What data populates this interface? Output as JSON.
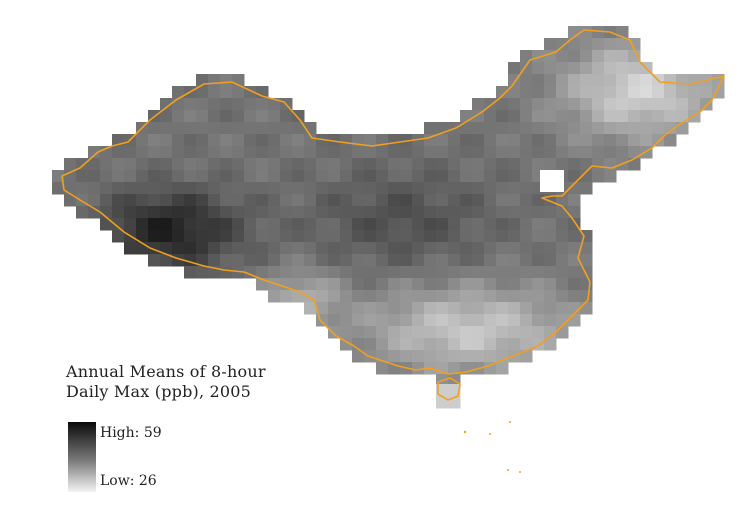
{
  "legend": {
    "title_line1": "Annual Means of 8-hour",
    "title_line2": "Daily Max (ppb), 2005",
    "high_label": "High: 59",
    "low_label": "Low: 26"
  },
  "colors": {
    "border": "#f0a020",
    "ramp_high": "#0a0a0a",
    "ramp_low": "#f4f4f4"
  },
  "scale": {
    "min": 26,
    "max": 59
  }
}
